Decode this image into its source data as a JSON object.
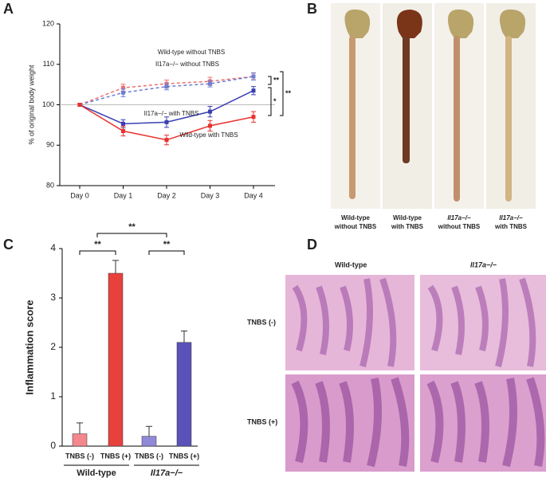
{
  "panel_labels": [
    "A",
    "B",
    "C",
    "D"
  ],
  "chart_data": [
    {
      "type": "line",
      "y_label": "% of original body weight",
      "categories": [
        "Day 0",
        "Day 1",
        "Day 2",
        "Day 3",
        "Day 4"
      ],
      "ylim": [
        80,
        120
      ],
      "yticks": [
        80,
        90,
        100,
        110,
        120
      ],
      "reference_line": 100,
      "series": [
        {
          "name": "Wild-type without TNBS",
          "color": "#f07070",
          "dashed": true,
          "values": [
            100,
            104.2,
            105.2,
            105.8,
            107
          ],
          "errors": [
            0.3,
            0.9,
            0.9,
            1.0,
            0.8
          ]
        },
        {
          "name": "Il17a−/− without TNBS",
          "color": "#6f7fd0",
          "dashed": true,
          "values": [
            100,
            103,
            104.5,
            105.2,
            107
          ],
          "errors": [
            0.3,
            1.0,
            0.8,
            0.8,
            0.9
          ]
        },
        {
          "name": "Il17a−/− with TNBS",
          "color": "#3a3fb0",
          "dashed": false,
          "values": [
            100,
            95.3,
            95.7,
            98.3,
            103.5
          ],
          "errors": [
            0.3,
            1.0,
            1.3,
            1.3,
            1.0
          ]
        },
        {
          "name": "Wild-type with TNBS",
          "color": "#e8322d",
          "dashed": false,
          "values": [
            100,
            93.5,
            91.3,
            94.8,
            97
          ],
          "errors": [
            0.3,
            1.2,
            1.2,
            1.3,
            1.3
          ]
        }
      ],
      "annotations": [
        "**",
        "*",
        "**"
      ]
    },
    {
      "type": "bar",
      "y_label": "Inflammation score",
      "categories": [
        "TNBS (-)",
        "TNBS (+)",
        "TNBS (-)",
        "TNBS (+)"
      ],
      "values": [
        0.25,
        3.5,
        0.2,
        2.1
      ],
      "errors": [
        0.22,
        0.26,
        0.2,
        0.23
      ],
      "colors": [
        "#f4878b",
        "#e8413c",
        "#8f89d8",
        "#5a52b8"
      ],
      "ylim": [
        0,
        4
      ],
      "yticks": [
        0,
        1,
        2,
        3,
        4
      ],
      "group_labels": [
        "Wild-type",
        "Il17a−/−"
      ],
      "annotations": [
        "**",
        "**",
        "**"
      ]
    }
  ],
  "photo_panel": {
    "labels": [
      [
        "Wild-type",
        "without TNBS"
      ],
      [
        "Wild-type",
        "with TNBS"
      ],
      [
        "Il17a−/−",
        "without TNBS"
      ],
      [
        "Il17a−/−",
        "with TNBS"
      ]
    ]
  },
  "histology_panel": {
    "column_headers": [
      "Wild-type",
      "Il17a−/−"
    ],
    "row_headers": [
      "TNBS (-)",
      "TNBS (+)"
    ]
  }
}
